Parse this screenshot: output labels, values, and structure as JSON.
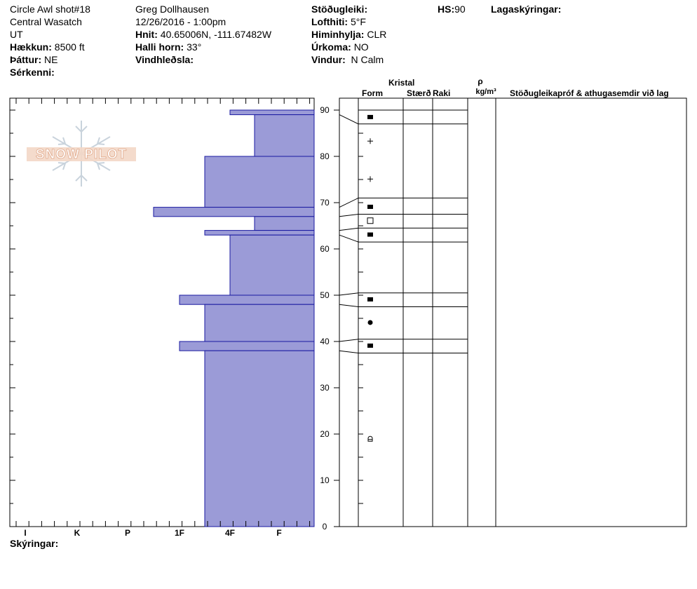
{
  "header": {
    "col1": {
      "title": "Circle Awl shot#18",
      "range": "Central Wasatch",
      "state": "UT",
      "elevation_label": "Hækkun:",
      "elevation_value": "8500 ft",
      "aspect_label": "Þáttur:",
      "aspect_value": "NE",
      "features_label": "Sérkenni:"
    },
    "col2": {
      "observer": "Greg Dollhausen",
      "datetime": "12/26/2016 - 1:00pm",
      "coords_label": "Hnit:",
      "coords_value": "40.65006N, -111.67482W",
      "slope_label": "Halli horn:",
      "slope_value": "33°",
      "wind_loading_label": "Vindhleðsla:"
    },
    "col3": {
      "stability_label": "Stöðugleiki:",
      "air_temp_label": "Lofthiti:",
      "air_temp_value": "5°F",
      "sky_label": "Himinhylja:",
      "sky_value": "CLR",
      "precip_label": "Úrkoma:",
      "precip_value": "NO",
      "wind_label": "Vindur:",
      "wind_value": "N Calm"
    },
    "hs_label": "HS:",
    "hs_value": "90",
    "layers_label": "Lagaskýringar:"
  },
  "footer": {
    "notes_label": "Skýringar:"
  },
  "watermark": {
    "text": "SNOW PILOT",
    "color": "#f0c8b0",
    "icon": "snowflake-icon"
  },
  "columns": {
    "crystal": "Kristal",
    "form": "Form",
    "size": "Stærð",
    "moisture": "Raki",
    "rho": "ρ",
    "density_unit": "kg/m³",
    "tests": "Stöðugleikapróf & athugasemdir við lag"
  },
  "colors": {
    "bar_fill": "#9b9bd7",
    "bar_stroke": "#1a1aa0"
  },
  "chart_data": {
    "type": "bar",
    "description_axis": "height (cm)",
    "ylim": [
      0,
      90
    ],
    "y_ticks": [
      0,
      10,
      20,
      30,
      40,
      50,
      60,
      70,
      80,
      90
    ],
    "hardness_labels": [
      "I",
      "K",
      "P",
      "1F",
      "4F",
      "F"
    ],
    "layers": [
      {
        "top": 90,
        "bottom": 89,
        "hardness": "4F"
      },
      {
        "top": 89,
        "bottom": 80,
        "hardness": "4F-F"
      },
      {
        "top": 80,
        "bottom": 69,
        "hardness": "1F-4F"
      },
      {
        "top": 69,
        "bottom": 67,
        "hardness": "P-1F"
      },
      {
        "top": 67,
        "bottom": 64,
        "hardness": "4F-F"
      },
      {
        "top": 64,
        "bottom": 63,
        "hardness": "1F-4F"
      },
      {
        "top": 63,
        "bottom": 50,
        "hardness": "4F"
      },
      {
        "top": 50,
        "bottom": 48,
        "hardness": "1F"
      },
      {
        "top": 48,
        "bottom": 40,
        "hardness": "1F-4F"
      },
      {
        "top": 40,
        "bottom": 38,
        "hardness": "1F"
      },
      {
        "top": 38,
        "bottom": 0,
        "hardness": "1F-4F"
      }
    ],
    "crystal_rows": [
      {
        "top": 90,
        "bottom": 87,
        "form_icon": "faceted-square-icon",
        "at": 88.5
      },
      {
        "top": 87,
        "bottom": 71,
        "form_icon": "precip-particle-plus-icon",
        "at": 83.3
      },
      {
        "top": 87,
        "bottom": 71,
        "form_icon": "precip-particle-plus-icon",
        "at": 75.1
      },
      {
        "top": 71,
        "bottom": 67.5,
        "form_icon": "faceted-square-icon",
        "at": 69.1
      },
      {
        "top": 67.5,
        "bottom": 64.5,
        "form_icon": "mixed-form-open-square-icon",
        "at": 66.1
      },
      {
        "top": 64.5,
        "bottom": 61.5,
        "form_icon": "faceted-square-icon",
        "at": 63.1
      },
      {
        "top": 50.5,
        "bottom": 47.5,
        "form_icon": "faceted-square-icon",
        "at": 49.1
      },
      {
        "top": 47.5,
        "bottom": 40.5,
        "form_icon": "rounded-grain-dot-icon",
        "at": 44.1
      },
      {
        "top": 40.5,
        "bottom": 37.5,
        "form_icon": "faceted-square-icon",
        "at": 39.1
      },
      {
        "top": 37.5,
        "bottom": 0,
        "form_icon": "melt-form-icon",
        "at": 18.9
      }
    ]
  }
}
